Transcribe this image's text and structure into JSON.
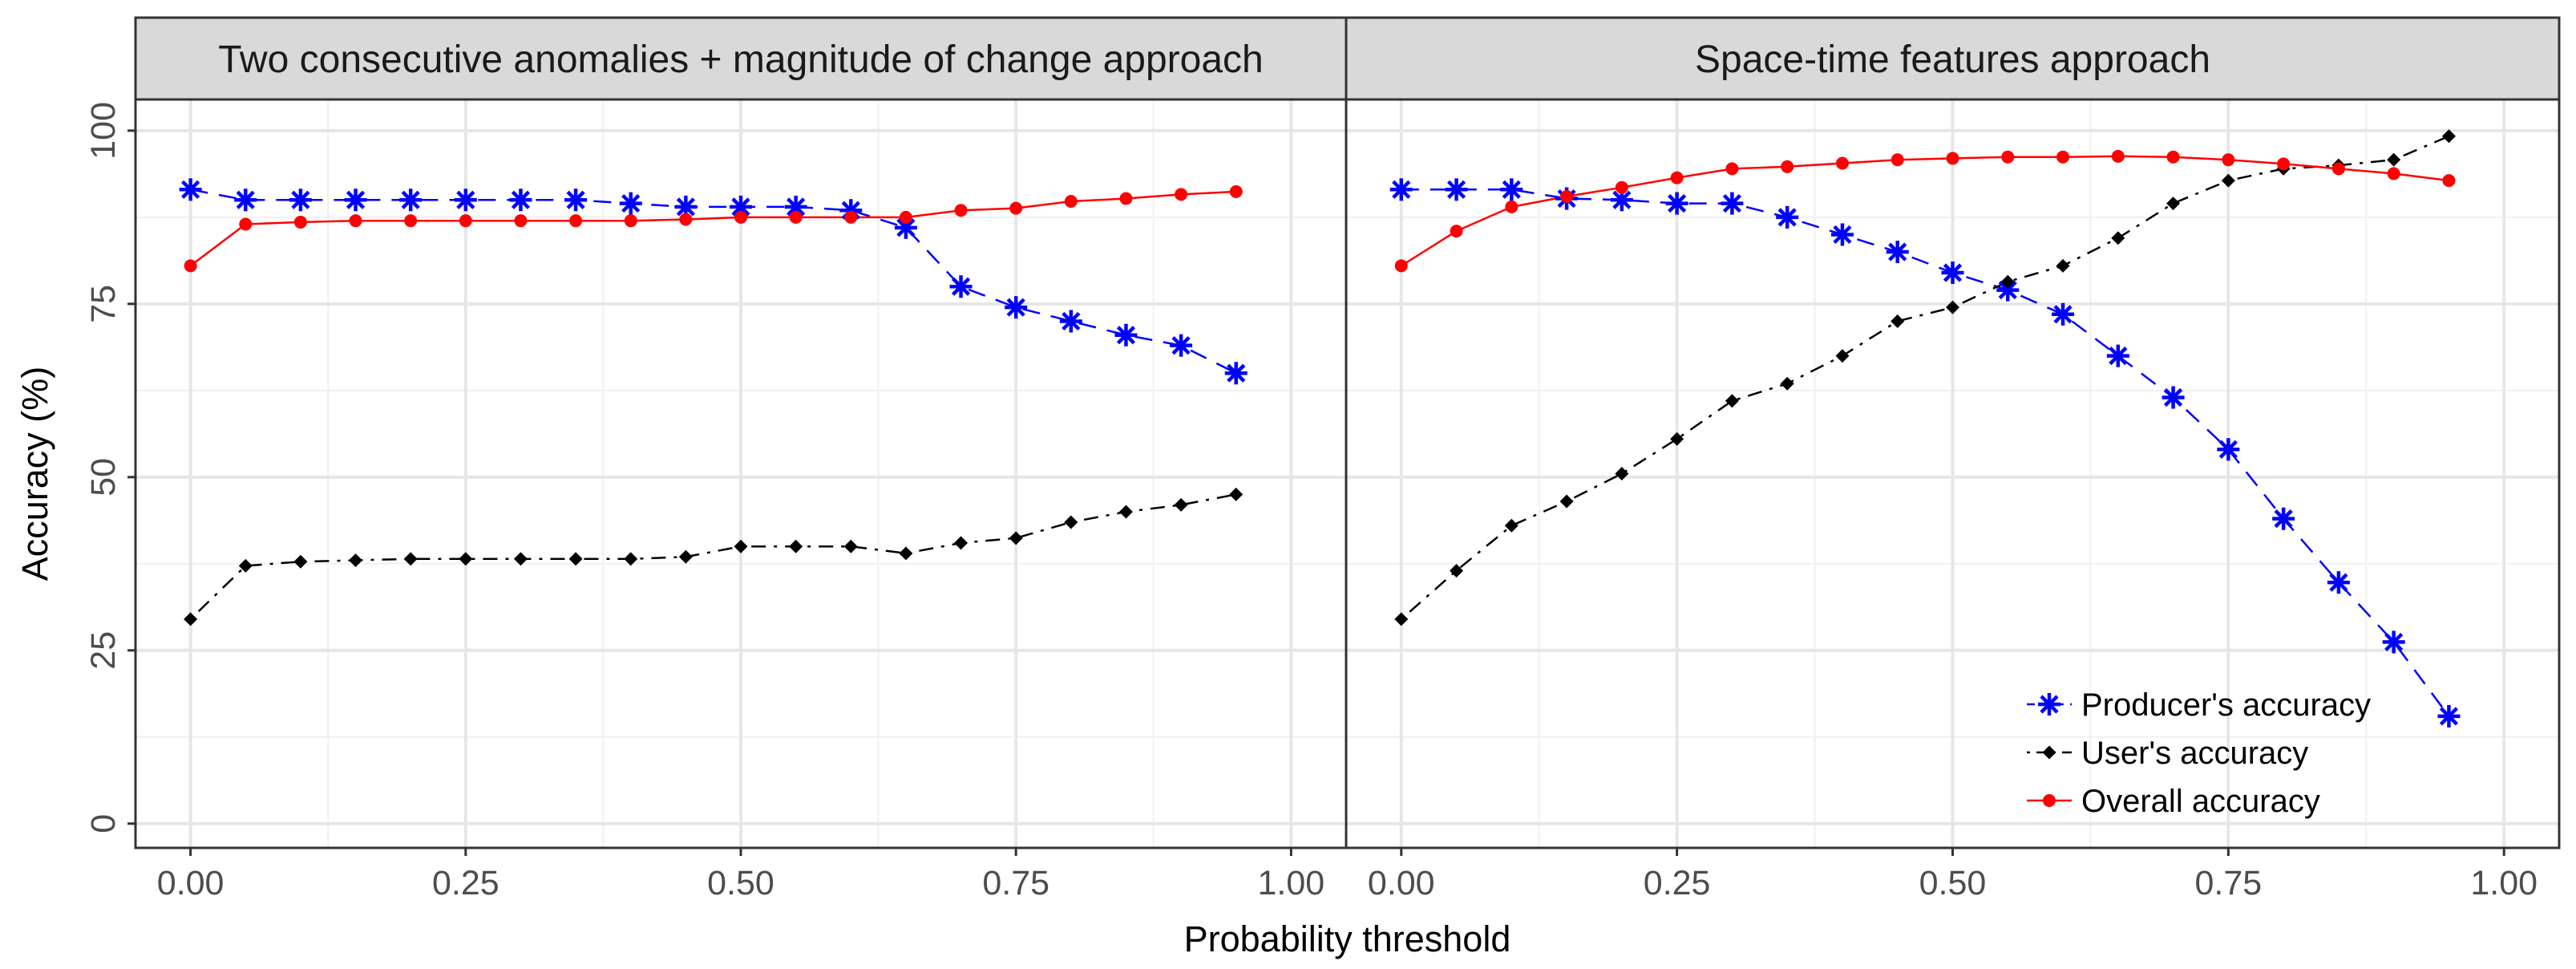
{
  "chart_data": {
    "type": "line",
    "ylabel": "Accuracy (%)",
    "xlabel": "Probability threshold",
    "xlim": [
      -0.05,
      1.05
    ],
    "ylim": [
      -3.5,
      104.5
    ],
    "xticks": [
      0.0,
      0.25,
      0.5,
      0.75,
      1.0
    ],
    "xtick_labels": [
      "0.00",
      "0.25",
      "0.50",
      "0.75",
      "1.00"
    ],
    "yticks": [
      0,
      25,
      50,
      75,
      100
    ],
    "ytick_labels": [
      "0",
      "25",
      "50",
      "75",
      "100"
    ],
    "x": [
      0.0,
      0.05,
      0.1,
      0.15,
      0.2,
      0.25,
      0.3,
      0.35,
      0.4,
      0.45,
      0.5,
      0.55,
      0.6,
      0.65,
      0.7,
      0.75,
      0.8,
      0.85,
      0.9,
      0.95
    ],
    "legend": {
      "position": "bottom-right",
      "entries": [
        "Producer's accuracy",
        "User's accuracy",
        "Overall accuracy"
      ]
    },
    "series_styles": [
      {
        "name": "Producer's accuracy",
        "color": "#0000ff",
        "line": "dashed",
        "marker": "asterisk"
      },
      {
        "name": "User's accuracy",
        "color": "#000000",
        "line": "dotdash",
        "marker": "diamond"
      },
      {
        "name": "Overall accuracy",
        "color": "#ff0000",
        "line": "solid",
        "marker": "circle"
      }
    ],
    "panels": [
      {
        "title": "Two consecutive anomalies + magnitude of change approach",
        "series": [
          {
            "name": "Producer's accuracy",
            "values": [
              91.5,
              90.0,
              90.0,
              90.0,
              90.0,
              90.0,
              90.0,
              90.0,
              89.5,
              89.0,
              89.0,
              89.0,
              88.5,
              86.0,
              77.5,
              74.5,
              72.5,
              70.5,
              69.0,
              65.0
            ]
          },
          {
            "name": "User's accuracy",
            "values": [
              29.5,
              37.2,
              37.8,
              38.0,
              38.2,
              38.2,
              38.2,
              38.2,
              38.2,
              38.5,
              40.0,
              40.0,
              40.0,
              39.0,
              40.5,
              41.2,
              43.5,
              45.0,
              46.0,
              47.5
            ]
          },
          {
            "name": "Overall accuracy",
            "values": [
              80.5,
              86.5,
              86.8,
              87.0,
              87.0,
              87.0,
              87.0,
              87.0,
              87.0,
              87.2,
              87.5,
              87.5,
              87.5,
              87.5,
              88.5,
              88.8,
              89.8,
              90.2,
              90.8,
              91.2
            ]
          }
        ]
      },
      {
        "title": "Space-time features approach",
        "series": [
          {
            "name": "Producer's accuracy",
            "values": [
              91.5,
              91.5,
              91.5,
              90.2,
              90.0,
              89.5,
              89.5,
              87.5,
              85.0,
              82.5,
              79.5,
              77.0,
              73.5,
              67.5,
              61.5,
              54.0,
              44.0,
              34.8,
              26.2,
              15.5
            ]
          },
          {
            "name": "User's accuracy",
            "values": [
              29.5,
              36.5,
              43.0,
              46.5,
              50.5,
              55.5,
              61.0,
              63.5,
              67.5,
              72.5,
              74.5,
              78.2,
              80.5,
              84.5,
              89.5,
              92.8,
              94.5,
              95.0,
              95.8,
              99.2
            ]
          },
          {
            "name": "Overall accuracy",
            "values": [
              80.5,
              85.5,
              89.0,
              90.5,
              91.8,
              93.2,
              94.5,
              94.8,
              95.3,
              95.8,
              96.0,
              96.2,
              96.2,
              96.3,
              96.2,
              95.8,
              95.2,
              94.5,
              93.8,
              92.8
            ]
          }
        ]
      }
    ]
  }
}
